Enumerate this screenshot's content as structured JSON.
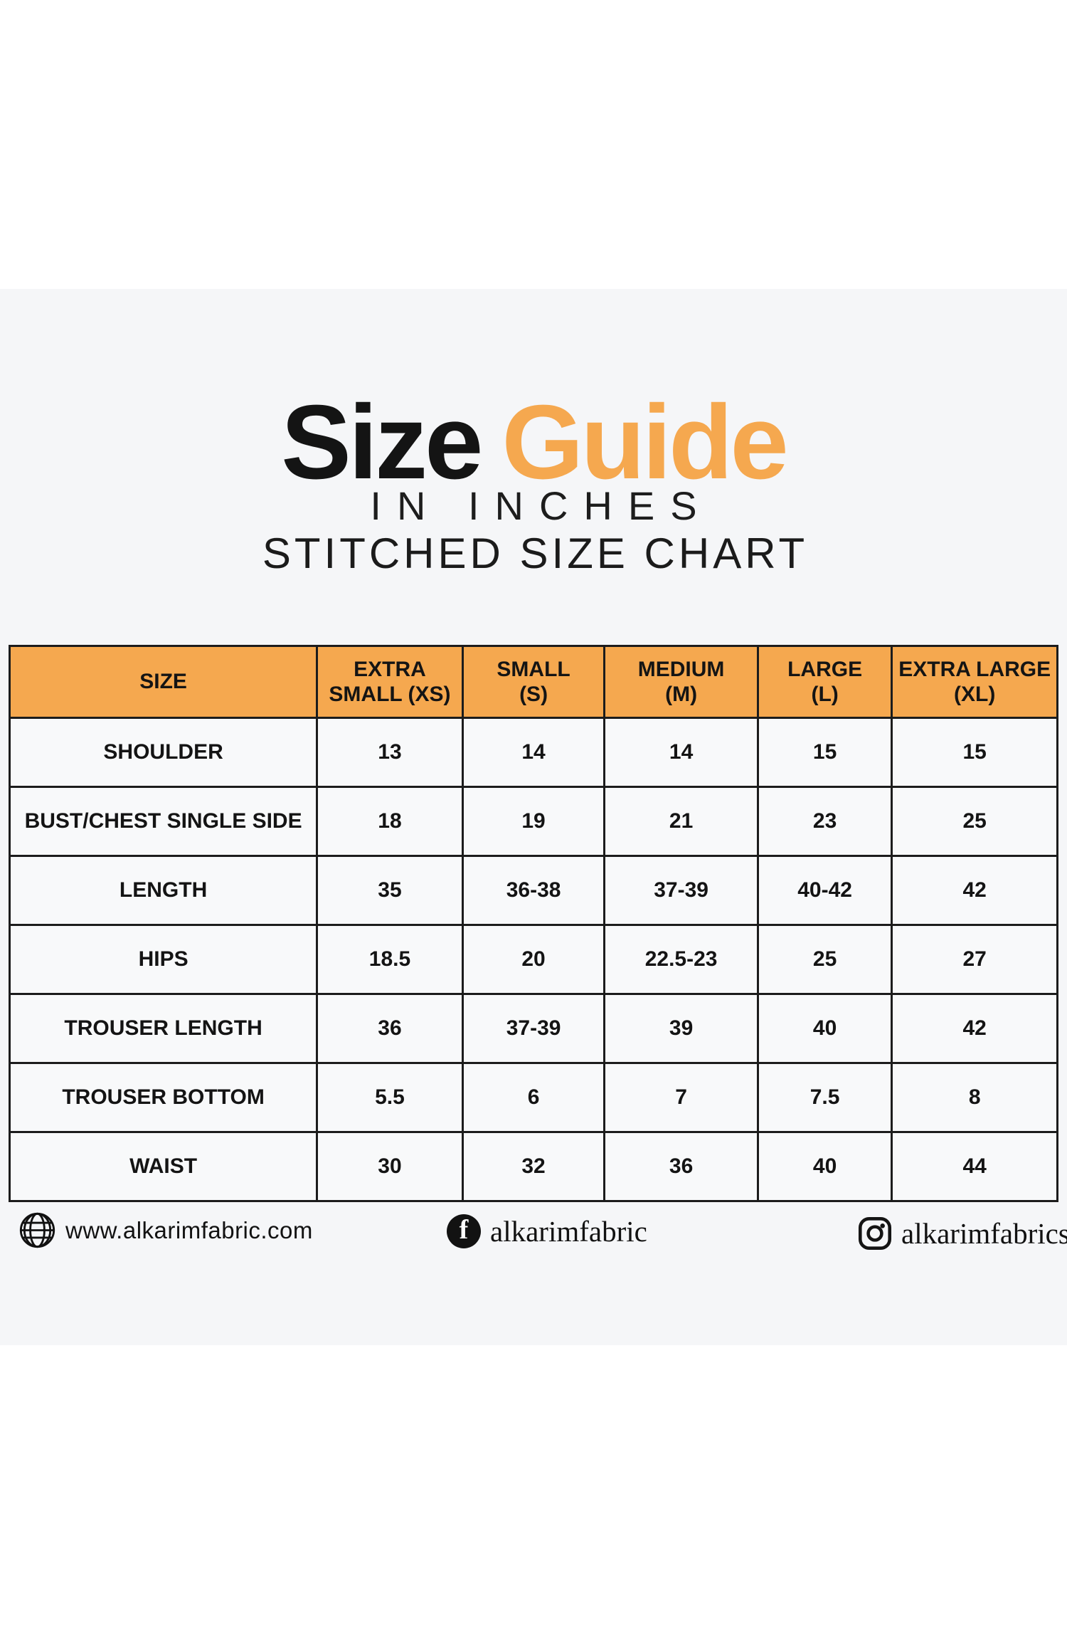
{
  "header": {
    "title_black": "Size",
    "title_orange": "Guide",
    "subtitle_top": "IN INCHES",
    "subtitle_bottom": "STITCHED SIZE CHART"
  },
  "colors": {
    "accent_orange": "#F5A84F",
    "title_black": "#141414",
    "border_dark": "#1C1C1C",
    "band_bg": "#F5F6F8",
    "cell_bg": "#F8F9FA",
    "page_bg": "#FFFFFF"
  },
  "chart_data": {
    "type": "table",
    "title": "Size Guide",
    "subtitle": "IN INCHES - STITCHED SIZE CHART",
    "unit": "inches",
    "columns": [
      "SIZE",
      "EXTRA SMALL (XS)",
      "SMALL (S)",
      "MEDIUM (M)",
      "LARGE (L)",
      "EXTRA LARGE (XL)"
    ],
    "column_header_lines": [
      [
        "SIZE"
      ],
      [
        "EXTRA",
        "SMALL (XS)"
      ],
      [
        "SMALL",
        "(S)"
      ],
      [
        "MEDIUM",
        "(M)"
      ],
      [
        "LARGE",
        "(L)"
      ],
      [
        "EXTRA LARGE",
        "(XL)"
      ]
    ],
    "rows": [
      {
        "label": "SHOULDER",
        "values": [
          "13",
          "14",
          "14",
          "15",
          "15"
        ]
      },
      {
        "label": "BUST/CHEST SINGLE SIDE",
        "values": [
          "18",
          "19",
          "21",
          "23",
          "25"
        ]
      },
      {
        "label": "LENGTH",
        "values": [
          "35",
          "36-38",
          "37-39",
          "40-42",
          "42"
        ]
      },
      {
        "label": "HIPS",
        "values": [
          "18.5",
          "20",
          "22.5-23",
          "25",
          "27"
        ]
      },
      {
        "label": "TROUSER LENGTH",
        "values": [
          "36",
          "37-39",
          "39",
          "40",
          "42"
        ]
      },
      {
        "label": "TROUSER BOTTOM",
        "values": [
          "5.5",
          "6",
          "7",
          "7.5",
          "8"
        ]
      },
      {
        "label": "WAIST",
        "values": [
          "30",
          "32",
          "36",
          "40",
          "44"
        ]
      }
    ]
  },
  "footer": {
    "website": {
      "icon": "globe-icon",
      "text": "www.alkarimfabric.com"
    },
    "facebook": {
      "icon": "facebook-icon",
      "text": "alkarimfabric"
    },
    "instagram": {
      "icon": "instagram-icon",
      "text": "alkarimfabrics"
    }
  }
}
